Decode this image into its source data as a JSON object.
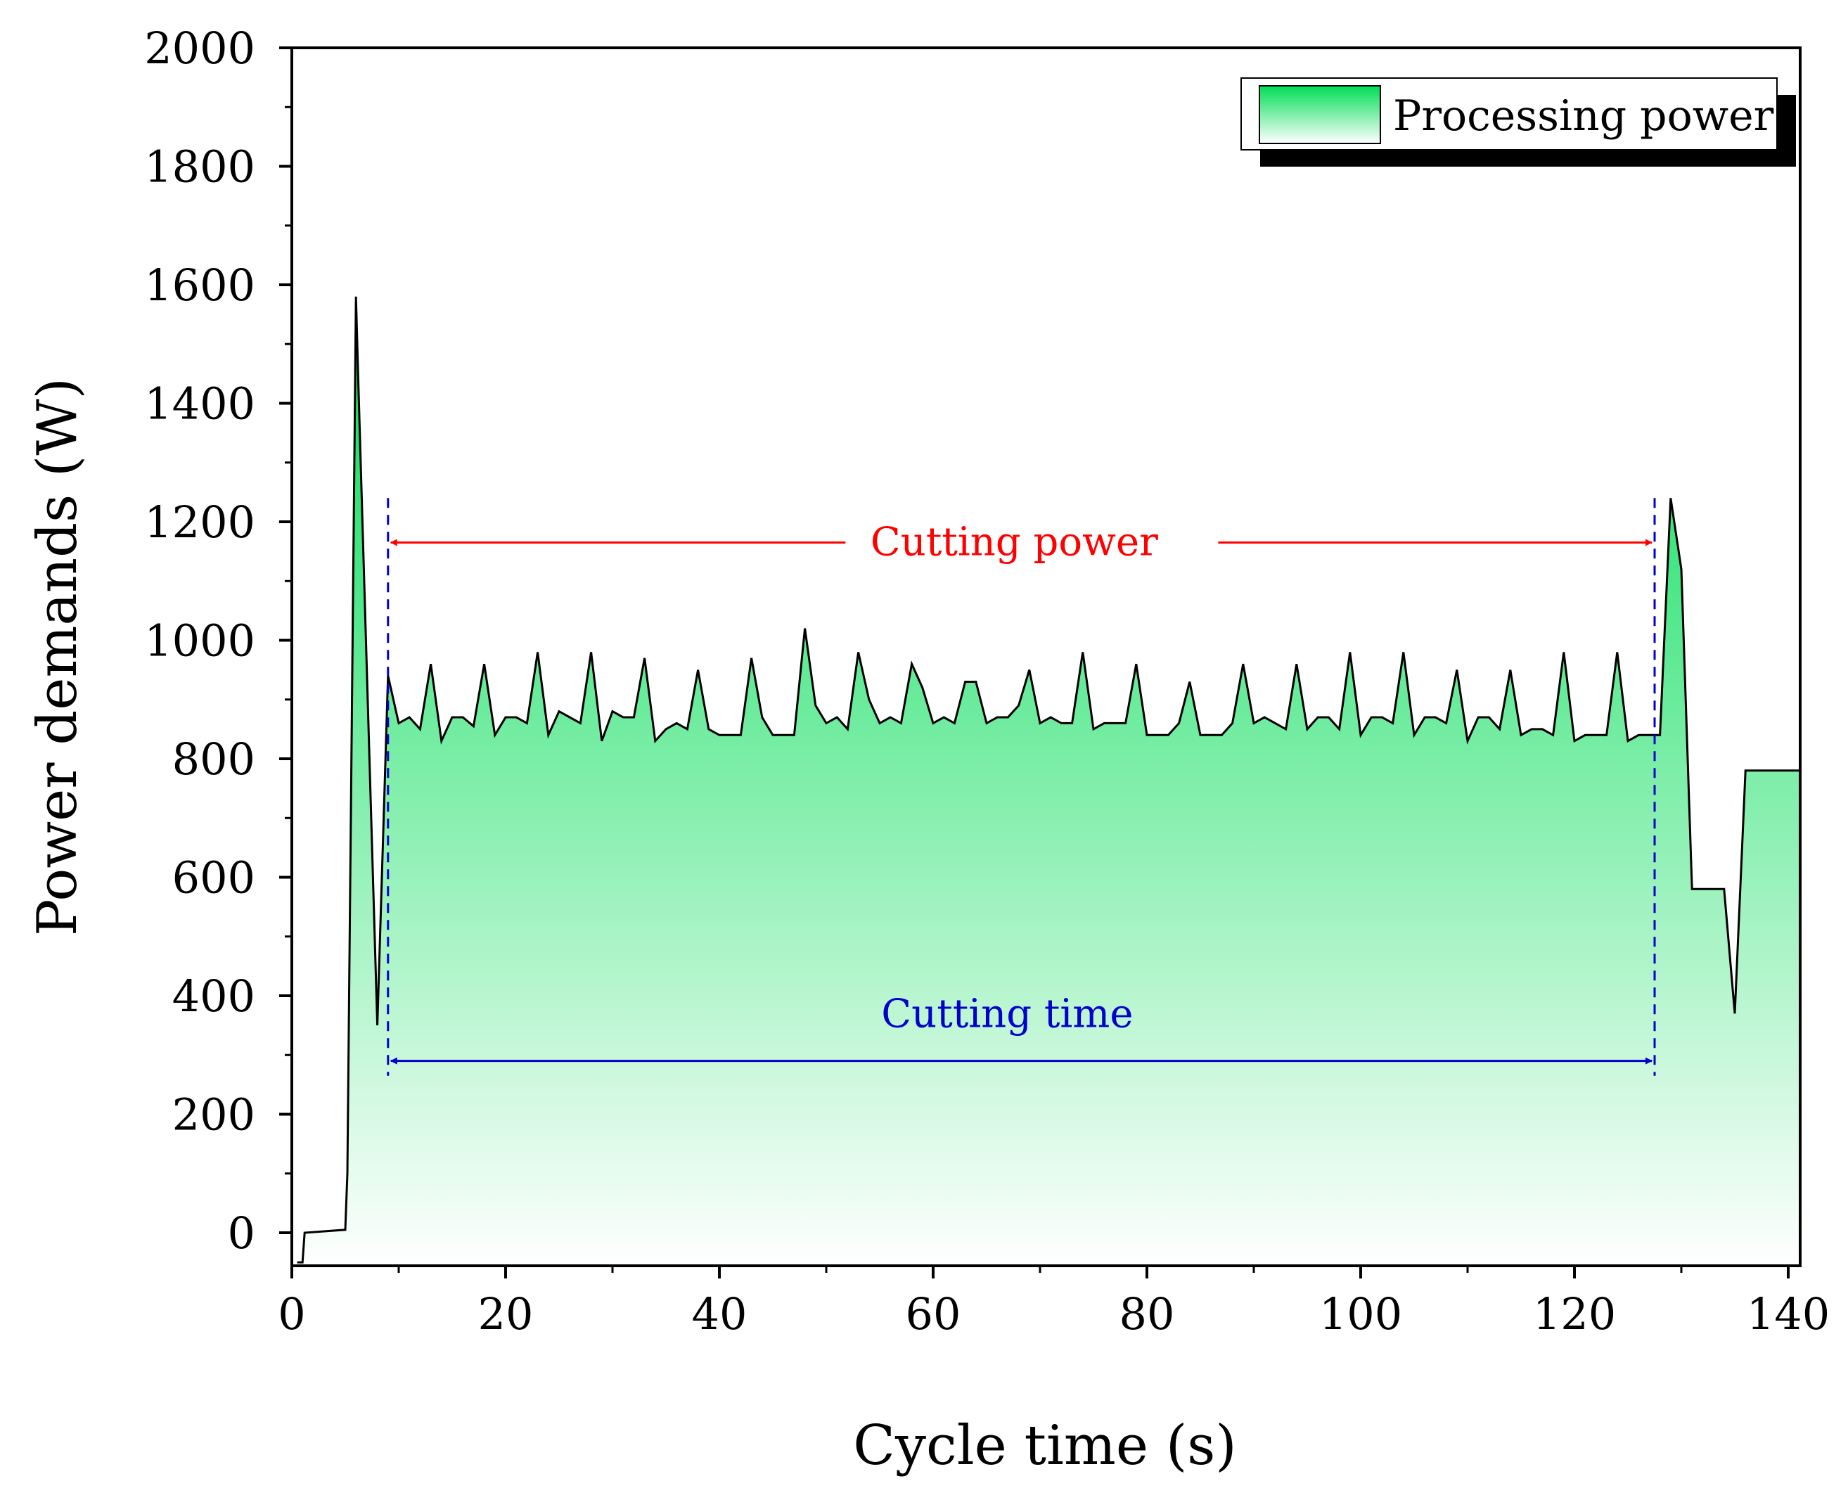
{
  "chart_data": {
    "type": "area",
    "title": "",
    "xlabel": "Cycle time (s)",
    "ylabel": "Power demands (W)",
    "xlim": [
      0,
      141
    ],
    "ylim": [
      -50,
      2000
    ],
    "x_major_ticks": [
      0,
      20,
      40,
      60,
      80,
      100,
      120,
      140
    ],
    "x_minor_ticks": [
      10,
      30,
      50,
      70,
      90,
      110,
      130
    ],
    "y_major_ticks": [
      0,
      200,
      400,
      600,
      800,
      1000,
      1200,
      1400,
      1600,
      1800,
      2000
    ],
    "y_minor_ticks": [
      100,
      300,
      500,
      700,
      900,
      1100,
      1300,
      1500,
      1700,
      1900
    ],
    "legend": {
      "position": "top-right",
      "entries": [
        "Processing power"
      ]
    },
    "colors": {
      "fill_top": "#00dd55",
      "fill_bottom": "#ffffff",
      "line": "#000000",
      "cutting_power": "#ff0000",
      "cutting_time": "#0000cc"
    },
    "series": [
      {
        "name": "Processing power",
        "x": [
          0.5,
          1,
          1.2,
          5,
          5.2,
          6,
          6.2,
          8,
          9,
          10,
          11,
          12,
          13,
          14,
          15,
          16,
          17,
          18,
          19,
          20,
          21,
          22,
          23,
          24,
          25,
          26,
          27,
          28,
          29,
          30,
          31,
          32,
          33,
          34,
          35,
          36,
          37,
          38,
          39,
          40,
          42,
          43,
          44,
          45,
          46,
          47,
          48,
          49,
          50,
          51,
          52,
          53,
          54,
          55,
          56,
          57,
          58,
          59,
          60,
          61,
          62,
          63,
          64,
          65,
          66,
          67,
          68,
          69,
          70,
          71,
          72,
          73,
          74,
          75,
          76,
          77,
          78,
          79,
          80,
          81,
          82,
          83,
          84,
          85,
          86,
          87,
          88,
          89,
          90,
          91,
          92,
          93,
          94,
          95,
          96,
          97,
          98,
          99,
          100,
          101,
          102,
          103,
          104,
          105,
          106,
          107,
          108,
          109,
          110,
          111,
          112,
          113,
          114,
          115,
          116,
          117,
          118,
          119,
          120,
          121,
          122,
          123,
          124,
          125,
          126,
          127,
          128,
          129,
          130,
          131,
          133,
          134,
          135,
          136,
          141
        ],
        "values": [
          -50,
          -50,
          0,
          5,
          100,
          1580,
          1450,
          350,
          940,
          860,
          870,
          850,
          960,
          830,
          870,
          870,
          855,
          960,
          840,
          870,
          870,
          860,
          980,
          840,
          880,
          870,
          860,
          980,
          830,
          880,
          870,
          870,
          970,
          830,
          850,
          860,
          850,
          950,
          850,
          840,
          840,
          970,
          870,
          840,
          840,
          840,
          1020,
          890,
          860,
          870,
          850,
          980,
          900,
          860,
          870,
          860,
          960,
          920,
          860,
          870,
          860,
          930,
          930,
          860,
          870,
          870,
          890,
          950,
          860,
          870,
          860,
          860,
          980,
          850,
          860,
          860,
          860,
          960,
          840,
          840,
          840,
          860,
          930,
          840,
          840,
          840,
          860,
          960,
          860,
          870,
          860,
          850,
          960,
          850,
          870,
          870,
          850,
          980,
          840,
          870,
          870,
          860,
          980,
          840,
          870,
          870,
          860,
          950,
          830,
          870,
          870,
          850,
          950,
          840,
          850,
          850,
          840,
          980,
          830,
          840,
          840,
          840,
          980,
          830,
          840,
          840,
          840,
          1240,
          1120,
          580,
          580,
          580,
          370,
          780,
          780
        ]
      }
    ],
    "annotations": [
      {
        "text": "Cutting power",
        "x_start": 9,
        "x_end": 127.5,
        "y": 1165
      },
      {
        "text": "Cutting time",
        "x_start": 9,
        "x_end": 127.5,
        "y": 290
      }
    ]
  }
}
